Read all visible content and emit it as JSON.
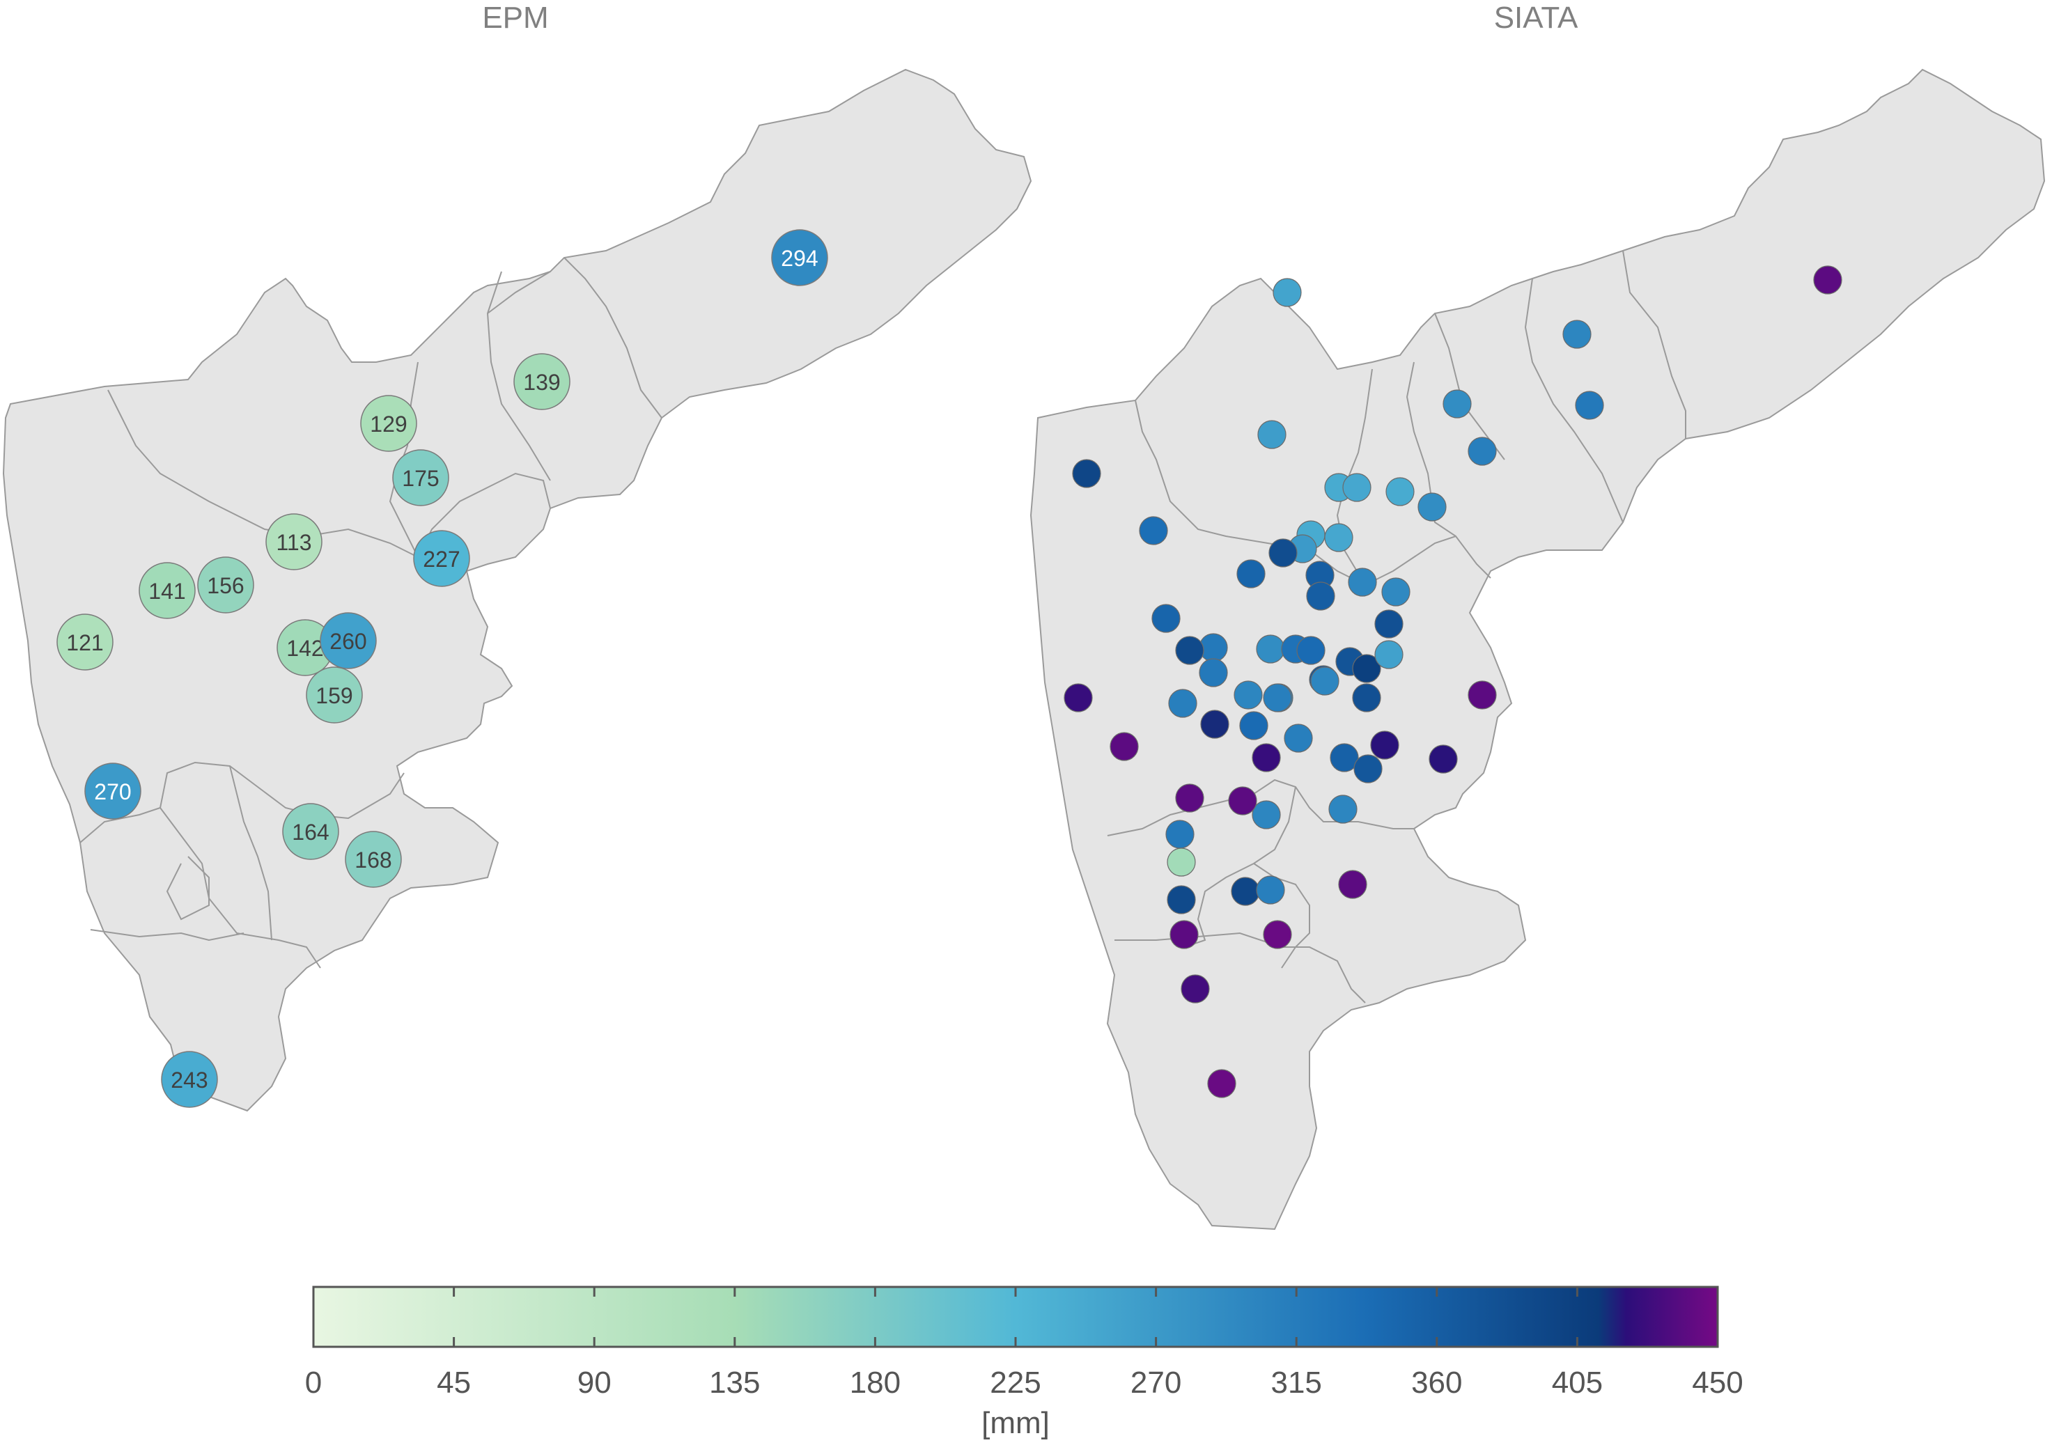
{
  "panels": [
    {
      "title": "EPM",
      "stations": [
        {
          "value": 294,
          "label": "294"
        },
        {
          "value": 139,
          "label": "139"
        },
        {
          "value": 129,
          "label": "129"
        },
        {
          "value": 175,
          "label": "175"
        },
        {
          "value": 113,
          "label": "113"
        },
        {
          "value": 227,
          "label": "227"
        },
        {
          "value": 141,
          "label": "141"
        },
        {
          "value": 156,
          "label": "156"
        },
        {
          "value": 121,
          "label": "121"
        },
        {
          "value": 142,
          "label": "142"
        },
        {
          "value": 260,
          "label": "260"
        },
        {
          "value": 159,
          "label": "159"
        },
        {
          "value": 270,
          "label": "270"
        },
        {
          "value": 164,
          "label": "164"
        },
        {
          "value": 168,
          "label": "168"
        },
        {
          "value": 243,
          "label": "243"
        }
      ]
    },
    {
      "title": "SIATA",
      "stations": [
        {
          "value": 440
        },
        {
          "value": 255
        },
        {
          "value": 300
        },
        {
          "value": 320
        },
        {
          "value": 290
        },
        {
          "value": 310
        },
        {
          "value": 265
        },
        {
          "value": 395
        },
        {
          "value": 245
        },
        {
          "value": 250
        },
        {
          "value": 245
        },
        {
          "value": 290
        },
        {
          "value": 335
        },
        {
          "value": 245
        },
        {
          "value": 250
        },
        {
          "value": 270
        },
        {
          "value": 385
        },
        {
          "value": 350
        },
        {
          "value": 300
        },
        {
          "value": 360
        },
        {
          "value": 360
        },
        {
          "value": 295
        },
        {
          "value": 380
        },
        {
          "value": 350
        },
        {
          "value": 320
        },
        {
          "value": 290
        },
        {
          "value": 330
        },
        {
          "value": 340
        },
        {
          "value": 390
        },
        {
          "value": 320
        },
        {
          "value": 375
        },
        {
          "value": 375
        },
        {
          "value": 405
        },
        {
          "value": 260
        },
        {
          "value": 300
        },
        {
          "value": 300
        },
        {
          "value": 380
        },
        {
          "value": 310
        },
        {
          "value": 300
        },
        {
          "value": 310
        },
        {
          "value": 425
        },
        {
          "value": 440
        },
        {
          "value": 415
        },
        {
          "value": 340
        },
        {
          "value": 310
        },
        {
          "value": 355
        },
        {
          "value": 370
        },
        {
          "value": 420
        },
        {
          "value": 440
        },
        {
          "value": 420
        },
        {
          "value": 425
        },
        {
          "value": 300
        },
        {
          "value": 300
        },
        {
          "value": 440
        },
        {
          "value": 440
        },
        {
          "value": 320
        },
        {
          "value": 140
        },
        {
          "value": 390
        },
        {
          "value": 395
        },
        {
          "value": 310
        },
        {
          "value": 440
        },
        {
          "value": 440
        },
        {
          "value": 445
        },
        {
          "value": 430
        },
        {
          "value": 445
        }
      ]
    }
  ],
  "colorbar": {
    "min": 0,
    "max": 450,
    "ticks": [
      "0",
      "45",
      "90",
      "135",
      "180",
      "225",
      "270",
      "315",
      "360",
      "405",
      "450"
    ],
    "unit": "[mm]",
    "stops": [
      "#e8f6e2",
      "#a7ddb6",
      "#52b8d6",
      "#1b6db5",
      "#0b3b7a",
      "#2c0e7a",
      "#750a85"
    ]
  }
}
